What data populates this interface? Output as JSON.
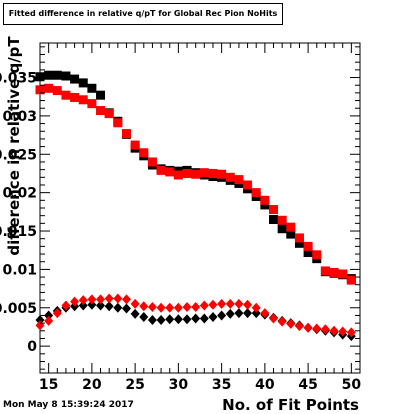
{
  "title": "Fitted difference in relative q/pT for Global Rec Pion NoHits",
  "timestamp": "Mon May  8 15:39:24 2017",
  "chart_data": {
    "type": "scatter",
    "title": "Fitted difference in relative q/pT for Global Rec Pion NoHits",
    "xlabel": "No. of Fit Points",
    "ylabel": "difference in relative q/pT",
    "xlim": [
      14,
      51
    ],
    "ylim": [
      -0.0035,
      0.0395
    ],
    "x_ticks": [
      15,
      20,
      25,
      30,
      35,
      40,
      45,
      50
    ],
    "y_ticks": [
      {
        "value": 0,
        "label": "0"
      },
      {
        "value": 0.005,
        "label": "0.005"
      },
      {
        "value": 0.01,
        "label": "0.01"
      },
      {
        "value": 0.015,
        "label": "0.015"
      },
      {
        "value": 0.02,
        "label": "0.02"
      },
      {
        "value": 0.025,
        "label": "0.025"
      },
      {
        "value": 0.03,
        "label": "0.03"
      },
      {
        "value": 0.035,
        "label": "0.035"
      }
    ],
    "series": [
      {
        "marker": "square",
        "color": "#000000",
        "x": [
          14,
          15,
          16,
          17,
          18,
          19,
          20,
          21,
          22,
          23,
          24,
          25,
          26,
          27,
          28,
          29,
          30,
          31,
          32,
          33,
          34,
          35,
          36,
          37,
          38,
          39,
          40,
          41,
          42,
          43,
          44,
          45,
          46,
          47,
          48,
          49,
          50
        ],
        "y": [
          0.0351,
          0.0353,
          0.0353,
          0.0352,
          0.0348,
          0.0343,
          0.0336,
          0.0327,
          0.0304,
          0.0293,
          0.0276,
          0.0258,
          0.0248,
          0.0236,
          0.0231,
          0.0229,
          0.0228,
          0.0229,
          0.0226,
          0.0223,
          0.0221,
          0.022,
          0.0216,
          0.0212,
          0.0205,
          0.0195,
          0.0184,
          0.0165,
          0.0153,
          0.0146,
          0.0134,
          0.0122,
          0.0114,
          0.0097,
          0.0095,
          0.0093,
          0.0088
        ]
      },
      {
        "marker": "square",
        "color": "#ff0000",
        "x": [
          14,
          15,
          16,
          17,
          18,
          19,
          20,
          21,
          22,
          23,
          24,
          25,
          26,
          27,
          28,
          29,
          30,
          31,
          32,
          33,
          34,
          35,
          36,
          37,
          38,
          39,
          40,
          41,
          42,
          43,
          44,
          45,
          46,
          47,
          48,
          49,
          50
        ],
        "y": [
          0.0334,
          0.0336,
          0.0333,
          0.0327,
          0.0324,
          0.0321,
          0.0316,
          0.0307,
          0.0303,
          0.0291,
          0.0277,
          0.0262,
          0.0252,
          0.024,
          0.0229,
          0.0227,
          0.0223,
          0.0225,
          0.0224,
          0.0226,
          0.0225,
          0.0224,
          0.022,
          0.0217,
          0.021,
          0.02,
          0.019,
          0.0178,
          0.0164,
          0.0155,
          0.0141,
          0.013,
          0.0119,
          0.0098,
          0.0096,
          0.0094,
          0.0086
        ]
      },
      {
        "marker": "diamond",
        "color": "#000000",
        "x": [
          14,
          15,
          16,
          17,
          18,
          19,
          20,
          21,
          22,
          23,
          24,
          25,
          26,
          27,
          28,
          29,
          30,
          31,
          32,
          33,
          34,
          35,
          36,
          37,
          38,
          39,
          40,
          41,
          42,
          43,
          44,
          45,
          46,
          47,
          48,
          49,
          50
        ],
        "y": [
          0.0034,
          0.004,
          0.0046,
          0.005,
          0.0052,
          0.0053,
          0.0054,
          0.0053,
          0.0052,
          0.005,
          0.0049,
          0.0042,
          0.0038,
          0.0034,
          0.0034,
          0.0035,
          0.0035,
          0.0035,
          0.0036,
          0.0036,
          0.0038,
          0.004,
          0.0042,
          0.0043,
          0.0043,
          0.0043,
          0.0041,
          0.0037,
          0.0033,
          0.003,
          0.0027,
          0.0024,
          0.0022,
          0.002,
          0.0018,
          0.0015,
          0.0013
        ]
      },
      {
        "marker": "diamond",
        "color": "#ff0000",
        "x": [
          14,
          15,
          16,
          17,
          18,
          19,
          20,
          21,
          22,
          23,
          24,
          25,
          26,
          27,
          28,
          29,
          30,
          31,
          32,
          33,
          34,
          35,
          36,
          37,
          38,
          39,
          40,
          41,
          42,
          43,
          44,
          45,
          46,
          47,
          48,
          49,
          50
        ],
        "y": [
          0.0027,
          0.0033,
          0.0043,
          0.0053,
          0.0058,
          0.006,
          0.0061,
          0.0061,
          0.0062,
          0.0062,
          0.0061,
          0.0055,
          0.0052,
          0.0051,
          0.005,
          0.005,
          0.005,
          0.0051,
          0.0051,
          0.0053,
          0.0054,
          0.0055,
          0.0055,
          0.0055,
          0.0054,
          0.005,
          0.0043,
          0.0036,
          0.0032,
          0.0029,
          0.0026,
          0.0024,
          0.0023,
          0.0022,
          0.002,
          0.0019,
          0.0018
        ]
      }
    ]
  }
}
